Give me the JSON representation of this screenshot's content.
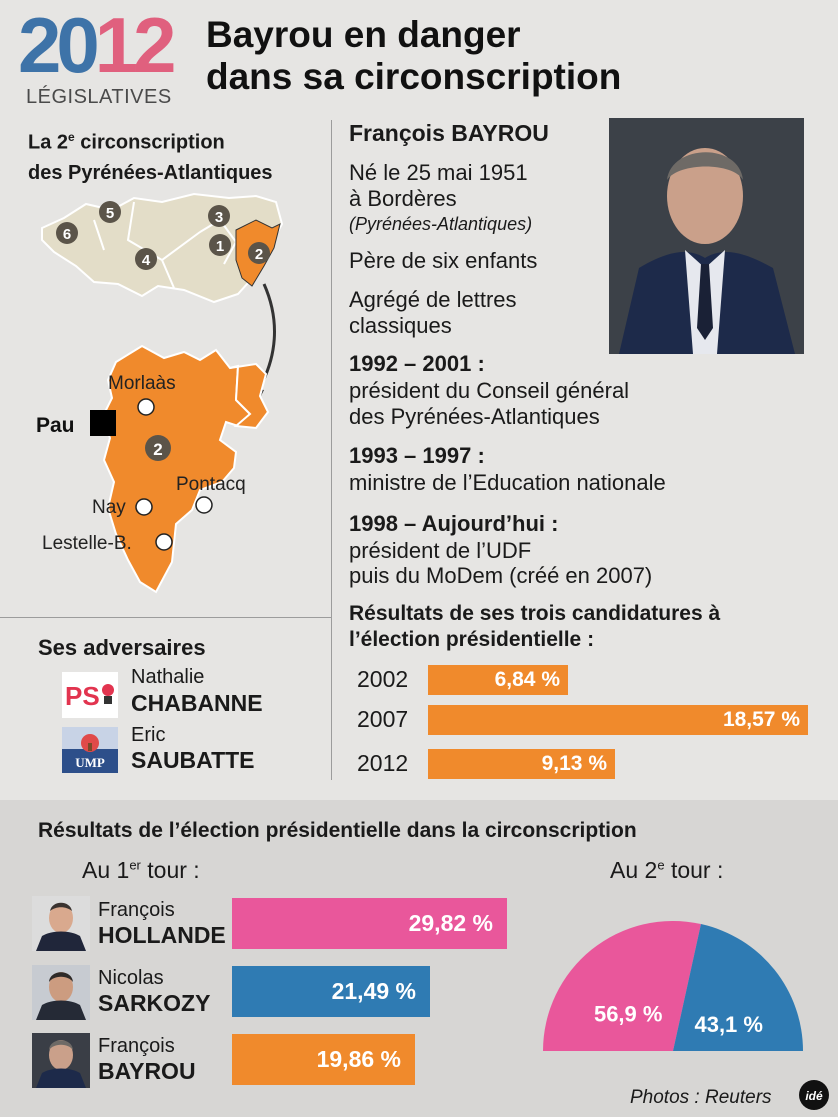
{
  "header": {
    "year_part1": "20",
    "year_part2": "12",
    "subtitle": "LÉGISLATIVES",
    "headline_line1": "Bayrou en danger",
    "headline_line2": "dans sa circonscription"
  },
  "colors": {
    "blue": "#2f7bb3",
    "pink": "#e9579b",
    "orange": "#f08a2c",
    "map_beige": "#e3ddc8"
  },
  "circonscription": {
    "title_pre": "La 2",
    "title_sup": "e",
    "title_rest": " circonscription",
    "title_line2": "des Pyrénées-Atlantiques",
    "map_numbers": [
      "1",
      "2",
      "3",
      "4",
      "5",
      "6"
    ],
    "zoom_number": "2",
    "towns": [
      "Morlaàs",
      "Pau",
      "Pontacq",
      "Nay",
      "Lestelle-B."
    ]
  },
  "adversaires": {
    "title": "Ses adversaires",
    "items": [
      {
        "party": "PS",
        "first": "Nathalie",
        "last": "CHABANNE"
      },
      {
        "party": "UMP",
        "first": "Eric",
        "last": "SAUBATTE"
      }
    ]
  },
  "bio": {
    "name": "François BAYROU",
    "born_line1": "Né le 25 mai 1951",
    "born_line2": "à Bordères",
    "born_line3": "(Pyrénées-Atlantiques)",
    "family": "Père de six enfants",
    "degree_line1": "Agrégé de lettres",
    "degree_line2": "classiques",
    "roles": [
      {
        "period": "1992 – 2001 :",
        "line1": "président du Conseil général",
        "line2": "des Pyrénées-Atlantiques"
      },
      {
        "period": "1993 – 1997 :",
        "line1": "ministre de l’Education nationale",
        "line2": ""
      },
      {
        "period": "1998 – Aujourd’hui :",
        "line1": "président de l’UDF",
        "line2": "puis du MoDem (créé en 2007)"
      }
    ]
  },
  "credit": "Photos : Reuters",
  "agency": "idé",
  "chart_data": [
    {
      "type": "bar",
      "title": "Résultats de ses trois candidatures à l’élection présidentielle :",
      "categories": [
        "2002",
        "2007",
        "2012"
      ],
      "values": [
        6.84,
        18.57,
        9.13
      ],
      "labels": [
        "6,84 %",
        "18,57 %",
        "9,13 %"
      ],
      "unit": "%"
    },
    {
      "type": "bar",
      "title": "Résultats de l’élection présidentielle dans la circonscription",
      "subtitle_pre": "Au 1",
      "subtitle_sup": "er",
      "subtitle_post": " tour :",
      "categories": [
        {
          "first": "François",
          "last": "HOLLANDE"
        },
        {
          "first": "Nicolas",
          "last": "SARKOZY"
        },
        {
          "first": "François",
          "last": "BAYROU"
        }
      ],
      "values": [
        29.82,
        21.49,
        19.86
      ],
      "labels": [
        "29,82 %",
        "21,49 %",
        "19,86 %"
      ],
      "colors": [
        "#e9579b",
        "#2f7bb3",
        "#f08a2c"
      ]
    },
    {
      "type": "pie",
      "subtitle_pre": "Au 2",
      "subtitle_sup": "e",
      "subtitle_post": " tour :",
      "values": [
        56.9,
        43.1
      ],
      "labels": [
        "56,9 %",
        "43,1 %"
      ],
      "colors": [
        "#e9579b",
        "#2f7bb3"
      ]
    }
  ]
}
